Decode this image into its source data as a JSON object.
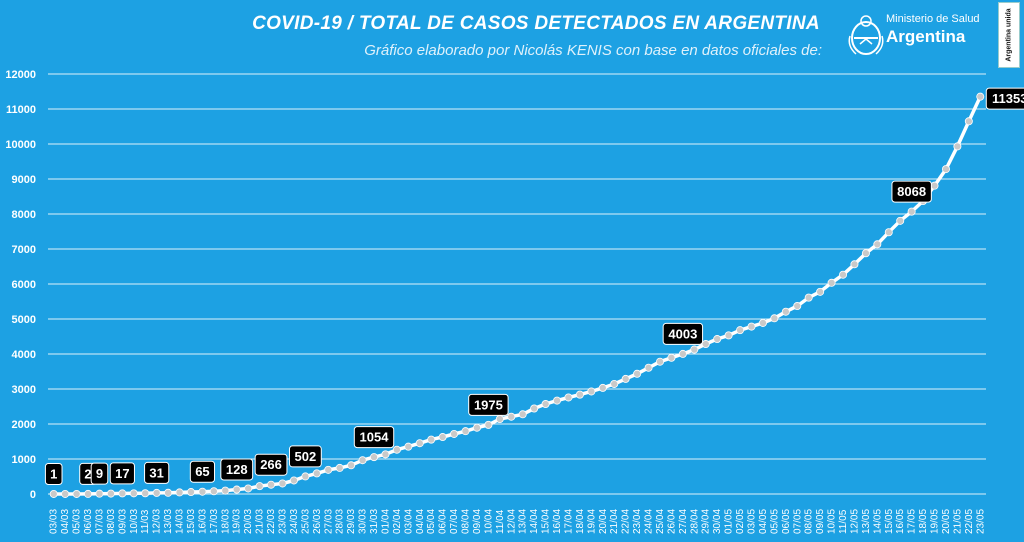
{
  "header": {
    "title": "COVID-19  /  TOTAL DE CASOS DETECTADOS EN ARGENTINA",
    "subtitle": "Gráfico elaborado por Nicolás KENIS con base en datos oficiales de:"
  },
  "logo": {
    "ministry": "Ministerio de Salud",
    "country": "Argentina",
    "badge": "Argentina unida"
  },
  "colors": {
    "background": "#1da1e3",
    "grid": "#ffffff",
    "line": "#ffffff",
    "marker": "#c9c9c9",
    "label_box": "#000000",
    "label_text": "#ffffff"
  },
  "chart_data": {
    "type": "line",
    "title": "COVID-19  /  TOTAL DE CASOS DETECTADOS EN ARGENTINA",
    "xlabel": "",
    "ylabel": "",
    "ylim": [
      0,
      12000
    ],
    "yticks": [
      0,
      1000,
      2000,
      3000,
      4000,
      5000,
      6000,
      7000,
      8000,
      9000,
      10000,
      11000,
      12000
    ],
    "grid": true,
    "legend": "none",
    "x": [
      "03/03",
      "04/03",
      "05/03",
      "06/03",
      "07/03",
      "08/03",
      "09/03",
      "10/03",
      "11/03",
      "12/03",
      "13/03",
      "14/03",
      "15/03",
      "16/03",
      "17/03",
      "18/03",
      "19/03",
      "20/03",
      "21/03",
      "22/03",
      "23/03",
      "24/03",
      "25/03",
      "26/03",
      "27/03",
      "28/03",
      "29/03",
      "30/03",
      "31/03",
      "01/04",
      "02/04",
      "03/04",
      "04/04",
      "05/04",
      "06/04",
      "07/04",
      "08/04",
      "09/04",
      "10/04",
      "11/04",
      "12/04",
      "13/04",
      "14/04",
      "15/04",
      "16/04",
      "17/04",
      "18/04",
      "19/04",
      "20/04",
      "21/04",
      "22/04",
      "23/04",
      "24/04",
      "25/04",
      "26/04",
      "27/04",
      "28/04",
      "29/04",
      "30/04",
      "01/05",
      "02/05",
      "03/05",
      "04/05",
      "05/05",
      "06/05",
      "07/05",
      "08/05",
      "09/05",
      "10/05",
      "11/05",
      "12/05",
      "13/05",
      "14/05",
      "15/05",
      "16/05",
      "17/05",
      "18/05",
      "19/05",
      "20/05",
      "21/05",
      "22/05",
      "23/05"
    ],
    "series": [
      {
        "values": [
          1,
          1,
          1,
          2,
          9,
          12,
          17,
          19,
          21,
          31,
          34,
          45,
          56,
          65,
          79,
          97,
          128,
          158,
          225,
          266,
          301,
          387,
          502,
          589,
          690,
          745,
          820,
          966,
          1054,
          1133,
          1265,
          1353,
          1451,
          1554,
          1628,
          1715,
          1795,
          1894,
          1975,
          2142,
          2208,
          2277,
          2443,
          2571,
          2669,
          2758,
          2839,
          2930,
          3031,
          3144,
          3288,
          3435,
          3607,
          3780,
          3892,
          4003,
          4127,
          4285,
          4428,
          4532,
          4681,
          4783,
          4887,
          5020,
          5208,
          5371,
          5611,
          5776,
          6034,
          6265,
          6563,
          6879,
          7134,
          7479,
          7805,
          8068,
          8371,
          8809,
          9283,
          9931,
          10649,
          11353
        ]
      }
    ],
    "data_labels": [
      {
        "x": "03/03",
        "text": "1"
      },
      {
        "x": "06/03",
        "text": "2"
      },
      {
        "x": "07/03",
        "text": "9"
      },
      {
        "x": "09/03",
        "text": "17"
      },
      {
        "x": "12/03",
        "text": "31"
      },
      {
        "x": "16/03",
        "text": "65"
      },
      {
        "x": "19/03",
        "text": "128"
      },
      {
        "x": "22/03",
        "text": "266"
      },
      {
        "x": "25/03",
        "text": "502"
      },
      {
        "x": "31/03",
        "text": "1054"
      },
      {
        "x": "10/04",
        "text": "1975"
      },
      {
        "x": "27/04",
        "text": "4003"
      },
      {
        "x": "17/05",
        "text": "8068"
      },
      {
        "x": "23/05",
        "text": "11353"
      }
    ]
  }
}
